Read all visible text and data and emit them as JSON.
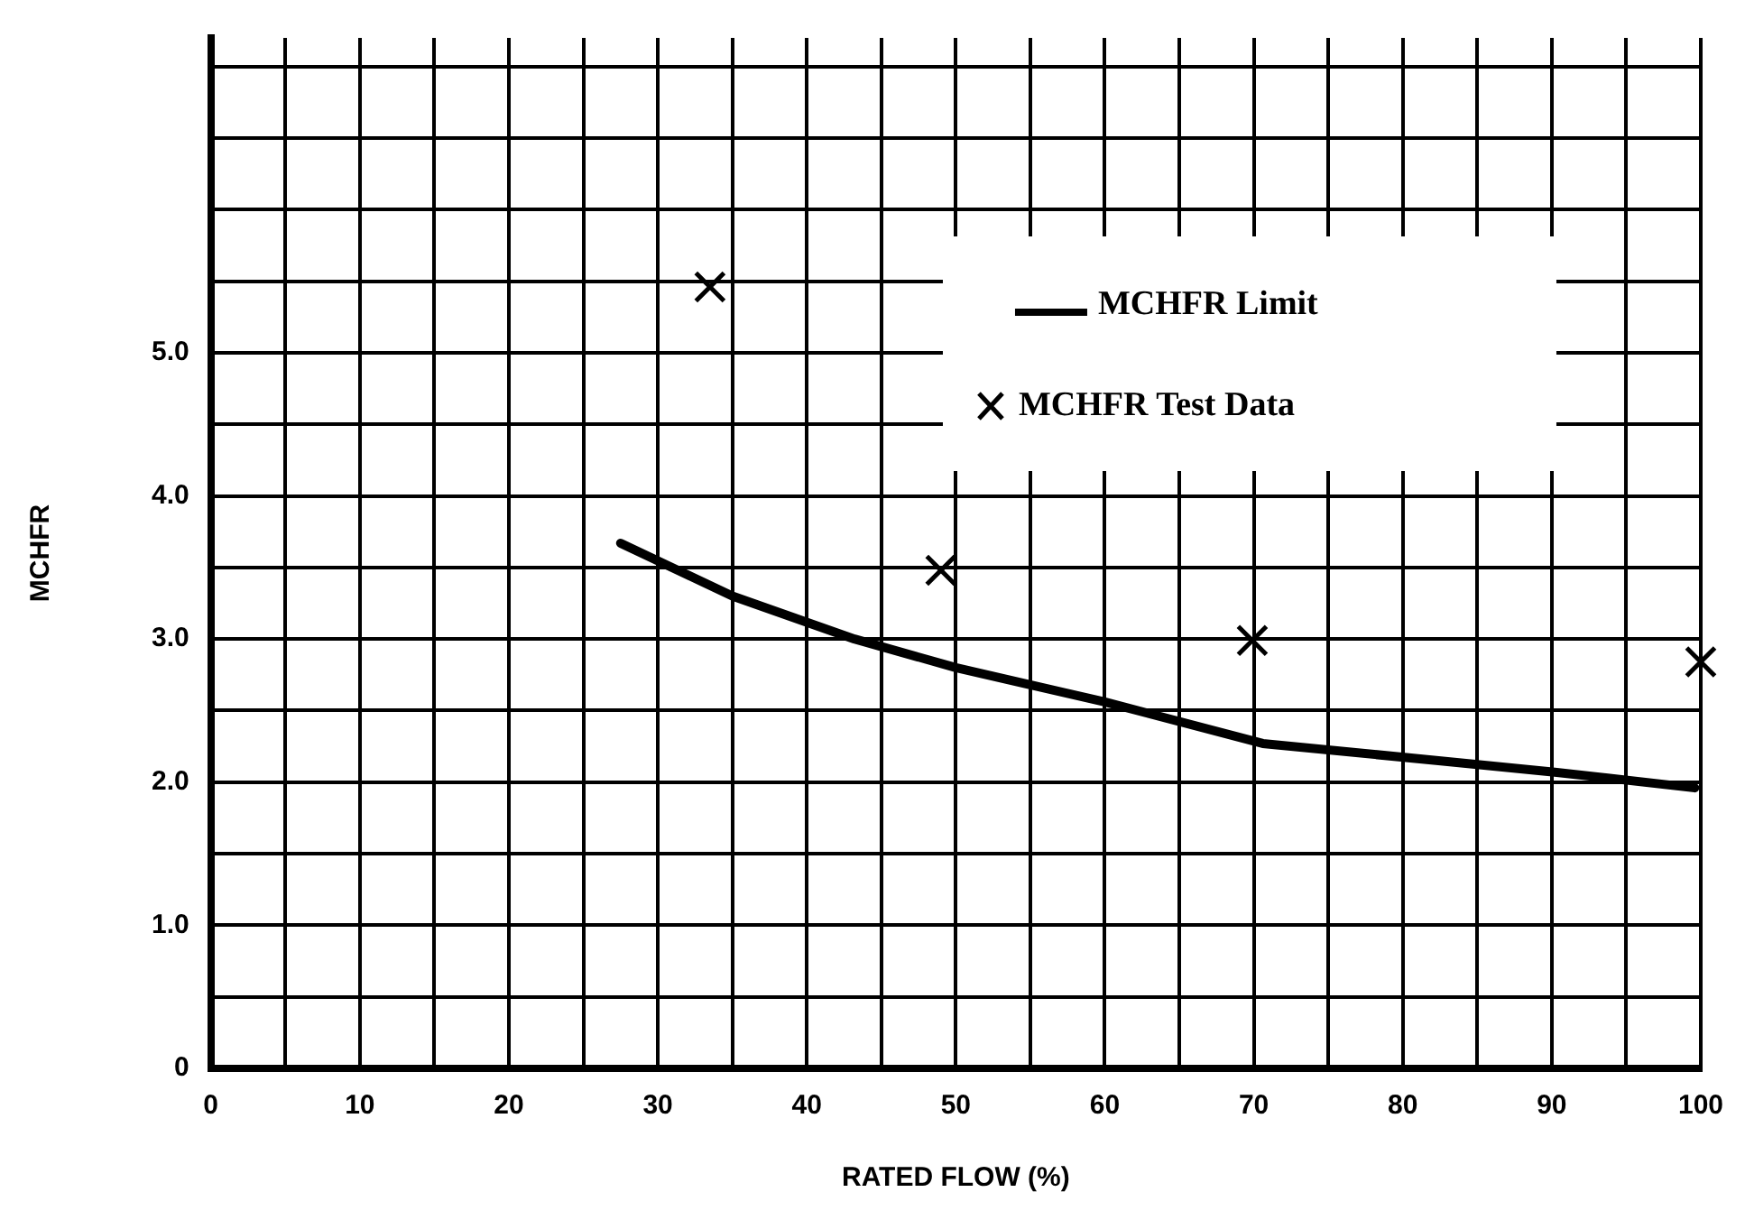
{
  "chart_data": {
    "type": "line",
    "xlabel": "RATED FLOW (%)",
    "ylabel": "MCHFR",
    "xlim": [
      0,
      100
    ],
    "ylim": [
      0,
      7.2
    ],
    "xticks": [
      0,
      {
        "value": 5,
        "label": null
      },
      10,
      {
        "value": 15,
        "label": null
      },
      20,
      {
        "value": 25,
        "label": null
      },
      30,
      {
        "value": 35,
        "label": null
      },
      40,
      {
        "value": 45,
        "label": null
      },
      50,
      {
        "value": 55,
        "label": null
      },
      60,
      {
        "value": 65,
        "label": null
      },
      70,
      {
        "value": 75,
        "label": null
      },
      80,
      {
        "value": 85,
        "label": null
      },
      90,
      {
        "value": 95,
        "label": null
      },
      100
    ],
    "yticks": [
      0,
      {
        "value": 0.5,
        "label": null
      },
      {
        "value": 1,
        "label": "1.0"
      },
      {
        "value": 1.5,
        "label": null
      },
      {
        "value": 2,
        "label": "2.0"
      },
      {
        "value": 2.5,
        "label": null
      },
      {
        "value": 3,
        "label": "3.0"
      },
      {
        "value": 3.5,
        "label": null
      },
      {
        "value": 4,
        "label": "4.0"
      },
      {
        "value": 4.5,
        "label": null
      },
      {
        "value": 5,
        "label": "5.0"
      },
      {
        "value": 5.5,
        "label": null
      },
      {
        "value": 6,
        "label": null
      },
      {
        "value": 6.5,
        "label": null
      },
      {
        "value": 7,
        "label": null
      }
    ],
    "grid": true,
    "legend": "top right",
    "series": [
      {
        "name": "MCHFR Limit",
        "color": "#000000",
        "marker": "none",
        "line_style": "solid",
        "x": [
          27.5,
          35,
          43.2,
          50,
          60,
          70.6,
          82.4,
          90.2,
          99.6
        ],
        "values": [
          3.67,
          3.3,
          3.0,
          2.8,
          2.56,
          2.27,
          2.15,
          2.07,
          1.96
        ]
      },
      {
        "name": "MCHFR Test Data",
        "type": "scatter",
        "color": "#000000",
        "marker": "cross",
        "x": [
          33.5,
          49,
          69.9,
          100
        ],
        "values": [
          5.46,
          3.48,
          2.99,
          2.84
        ]
      }
    ]
  }
}
